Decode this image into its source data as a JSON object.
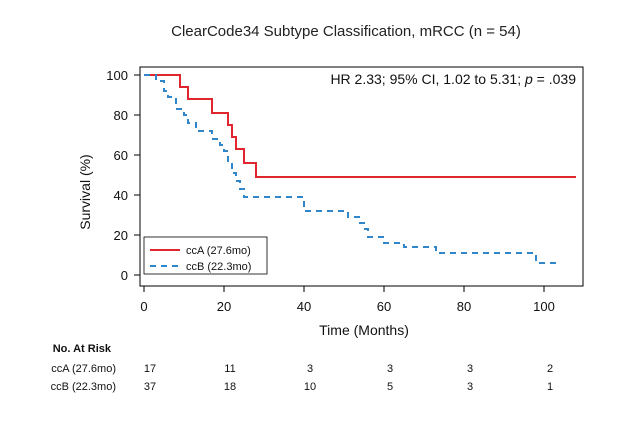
{
  "chart_data": {
    "type": "line",
    "title": "ClearCode34 Subtype Classification, mRCC (n = 54)",
    "xlabel": "Time (Months)",
    "ylabel": "Survival (%)",
    "xlim": [
      0,
      110
    ],
    "ylim": [
      0,
      100
    ],
    "x_ticks": [
      0,
      20,
      40,
      60,
      80,
      100
    ],
    "y_ticks": [
      0,
      20,
      40,
      60,
      80,
      100
    ],
    "annotation": {
      "prefix": "HR 2.33; 95% CI, 1.02 to 5.31; ",
      "p_label": "p",
      "suffix": " = .039"
    },
    "legend_position": "bottom-left",
    "series": [
      {
        "name": "ccA (27.6mo)",
        "color": "#e0262f",
        "line_style": "solid",
        "steps": [
          [
            0,
            100
          ],
          [
            9,
            94
          ],
          [
            11,
            88
          ],
          [
            17,
            81
          ],
          [
            21,
            75
          ],
          [
            22,
            69
          ],
          [
            23,
            63
          ],
          [
            25,
            56
          ],
          [
            28,
            49
          ],
          [
            108,
            49
          ]
        ]
      },
      {
        "name": "ccB (22.3mo)",
        "color": "#2f86c8",
        "line_style": "dashed",
        "steps": [
          [
            0,
            100
          ],
          [
            3,
            97
          ],
          [
            5,
            92
          ],
          [
            6,
            89
          ],
          [
            8,
            83
          ],
          [
            10,
            80
          ],
          [
            11,
            76
          ],
          [
            13,
            72
          ],
          [
            17,
            68
          ],
          [
            19,
            65
          ],
          [
            20,
            62
          ],
          [
            21,
            57
          ],
          [
            22,
            51
          ],
          [
            23,
            47
          ],
          [
            24,
            43
          ],
          [
            25,
            39
          ],
          [
            40,
            32
          ],
          [
            51,
            29
          ],
          [
            54,
            26
          ],
          [
            55,
            23
          ],
          [
            56,
            19
          ],
          [
            60,
            16
          ],
          [
            65,
            14
          ],
          [
            73,
            11
          ],
          [
            98,
            6
          ],
          [
            104,
            6
          ]
        ]
      }
    ],
    "at_risk": {
      "title": "No. At Risk",
      "times": [
        0,
        20,
        40,
        60,
        80,
        100
      ],
      "rows": [
        {
          "label": "ccA (27.6mo)",
          "counts": [
            17,
            11,
            3,
            3,
            3,
            2
          ]
        },
        {
          "label": "ccB (22.3mo)",
          "counts": [
            37,
            18,
            10,
            5,
            3,
            1
          ]
        }
      ]
    }
  }
}
